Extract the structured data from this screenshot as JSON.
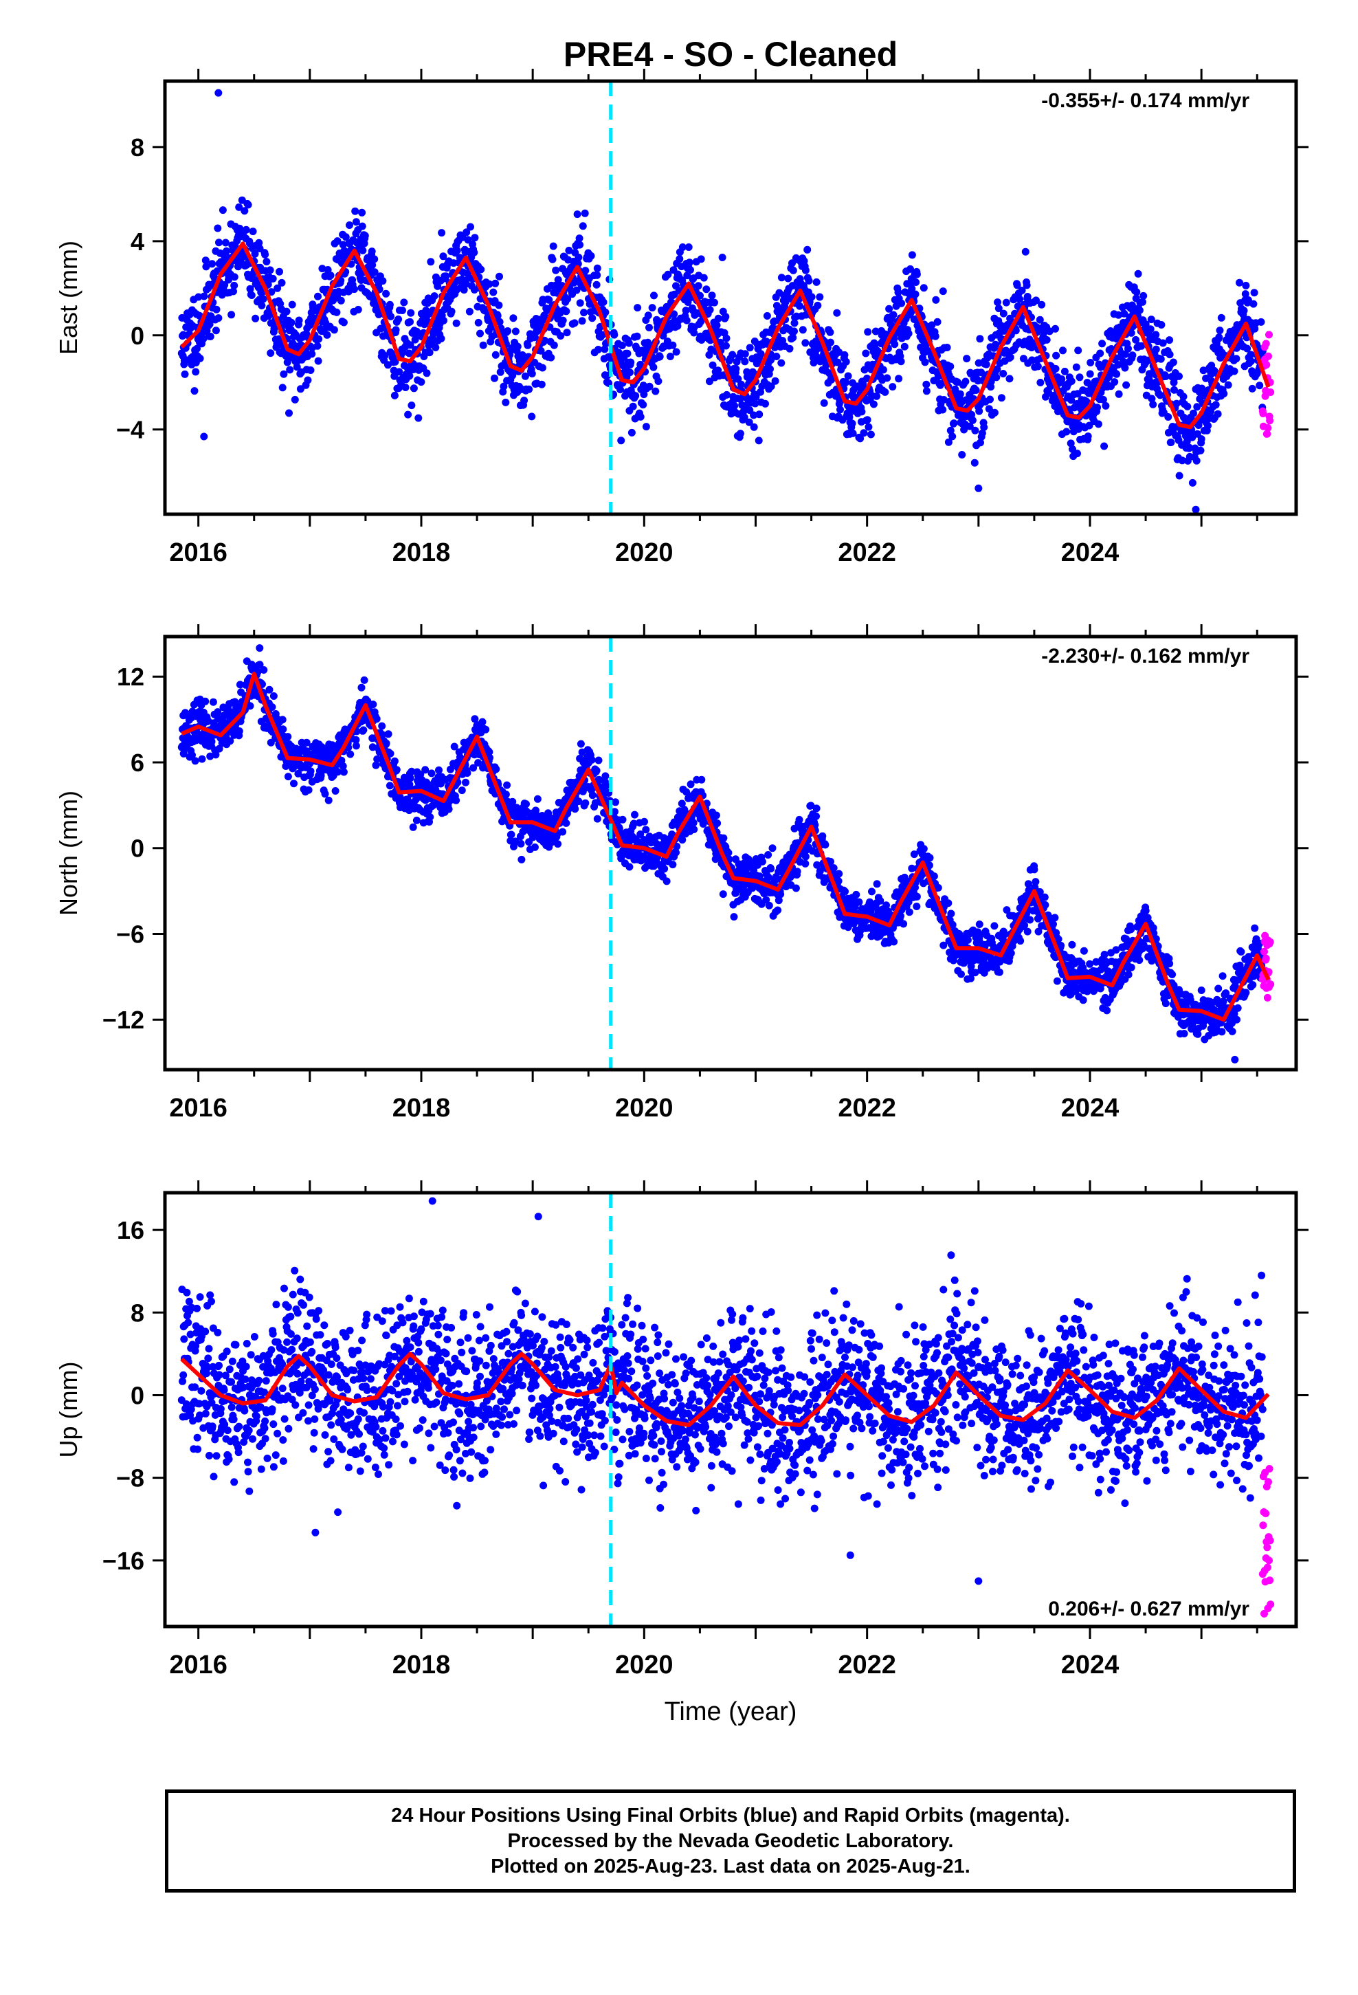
{
  "chart_data": {
    "title": "PRE4  - SO - Cleaned",
    "xlabel": "Time (year)",
    "xlim": [
      2015.7,
      2025.85
    ],
    "x_ticks": [
      2016,
      2018,
      2020,
      2022,
      2024
    ],
    "type": "scatter",
    "event_line_x": 2019.7,
    "colors": {
      "final": "#0000ff",
      "rapid": "#ff00ff",
      "model": "#ff0000",
      "event": "#00e5ff"
    },
    "panels": [
      {
        "id": "east",
        "ylabel": "East (mm)",
        "ylim": [
          -7.6,
          10.8
        ],
        "y_ticks": [
          -4,
          0,
          4,
          8
        ],
        "rate": "-0.355+/- 0.174 mm/yr",
        "rate_position": "top-right",
        "model": {
          "x": [
            2015.85,
            2016.0,
            2016.2,
            2016.4,
            2016.6,
            2016.8,
            2016.9,
            2017.0,
            2017.2,
            2017.4,
            2017.6,
            2017.8,
            2017.9,
            2018.0,
            2018.2,
            2018.4,
            2018.6,
            2018.8,
            2018.9,
            2019.0,
            2019.2,
            2019.4,
            2019.6,
            2019.8,
            2019.9,
            2020.0,
            2020.2,
            2020.4,
            2020.6,
            2020.8,
            2020.9,
            2021.0,
            2021.2,
            2021.4,
            2021.6,
            2021.8,
            2021.9,
            2022.0,
            2022.2,
            2022.4,
            2022.6,
            2022.8,
            2022.9,
            2023.0,
            2023.2,
            2023.4,
            2023.6,
            2023.8,
            2023.9,
            2024.0,
            2024.2,
            2024.4,
            2024.6,
            2024.8,
            2024.9,
            2025.0,
            2025.2,
            2025.4,
            2025.6
          ],
          "y": [
            -0.5,
            0.2,
            2.6,
            3.9,
            2.0,
            -0.6,
            -0.8,
            -0.2,
            2.1,
            3.6,
            1.8,
            -1.0,
            -1.1,
            -0.5,
            1.8,
            3.3,
            1.3,
            -1.3,
            -1.5,
            -0.9,
            1.3,
            2.9,
            1.0,
            -1.9,
            -2.0,
            -1.4,
            0.8,
            2.2,
            0.2,
            -2.3,
            -2.5,
            -1.9,
            0.3,
            1.9,
            -0.3,
            -2.8,
            -2.9,
            -2.3,
            -0.1,
            1.5,
            -0.7,
            -3.1,
            -3.2,
            -2.7,
            -0.5,
            1.2,
            -1.1,
            -3.4,
            -3.5,
            -3.0,
            -0.9,
            0.8,
            -1.5,
            -3.8,
            -3.9,
            -3.3,
            -1.2,
            0.5,
            -2.2
          ]
        },
        "final_points": {
          "seed": 11,
          "start": 2015.85,
          "end": 2025.55,
          "count": 2700,
          "noise_sd": 0.95,
          "outliers": [
            [
              2016.18,
              10.3
            ],
            [
              2016.05,
              -4.3
            ],
            [
              2024.95,
              -7.4
            ],
            [
              2023.0,
              -6.5
            ]
          ]
        },
        "rapid_points": {
          "start": 2025.55,
          "end": 2025.62,
          "count": 22,
          "y_range": [
            -4.5,
            0.1
          ]
        }
      },
      {
        "id": "north",
        "ylabel": "North (mm)",
        "ylim": [
          -15.5,
          14.8
        ],
        "y_ticks": [
          -12,
          -6,
          0,
          6,
          12
        ],
        "rate": "-2.230+/- 0.162 mm/yr",
        "rate_position": "top-right",
        "model": {
          "x": [
            2015.85,
            2016.0,
            2016.2,
            2016.4,
            2016.5,
            2016.6,
            2016.8,
            2017.0,
            2017.2,
            2017.3,
            2017.5,
            2017.7,
            2017.8,
            2018.0,
            2018.2,
            2018.3,
            2018.5,
            2018.7,
            2018.8,
            2019.0,
            2019.2,
            2019.3,
            2019.5,
            2019.7,
            2019.8,
            2020.0,
            2020.2,
            2020.3,
            2020.5,
            2020.7,
            2020.8,
            2021.0,
            2021.2,
            2021.3,
            2021.5,
            2021.7,
            2021.8,
            2022.0,
            2022.2,
            2022.3,
            2022.5,
            2022.7,
            2022.8,
            2023.0,
            2023.2,
            2023.3,
            2023.5,
            2023.7,
            2023.8,
            2024.0,
            2024.2,
            2024.3,
            2024.5,
            2024.7,
            2024.8,
            2025.0,
            2025.2,
            2025.3,
            2025.5,
            2025.6
          ],
          "y": [
            8.0,
            8.5,
            7.9,
            9.5,
            12.2,
            10.0,
            6.3,
            6.2,
            5.8,
            7.0,
            10.0,
            6.0,
            3.9,
            4.0,
            3.3,
            4.8,
            7.8,
            3.8,
            1.8,
            1.8,
            1.2,
            2.8,
            5.5,
            2.0,
            0.2,
            0.0,
            -0.6,
            1.0,
            3.6,
            -0.4,
            -2.1,
            -2.3,
            -2.9,
            -1.5,
            1.5,
            -2.5,
            -4.6,
            -4.8,
            -5.4,
            -3.8,
            -1.0,
            -5.0,
            -7.0,
            -7.0,
            -7.5,
            -6.0,
            -3.0,
            -7.0,
            -9.1,
            -9.0,
            -9.6,
            -8.0,
            -5.3,
            -9.5,
            -11.3,
            -11.4,
            -12.0,
            -10.5,
            -7.5,
            -9.2
          ]
        },
        "final_points": {
          "seed": 23,
          "start": 2015.85,
          "end": 2025.55,
          "count": 2700,
          "noise_sd": 0.85,
          "outliers": [
            [
              2016.55,
              14.0
            ],
            [
              2025.3,
              -14.8
            ],
            [
              2018.9,
              -0.8
            ],
            [
              2023.5,
              -1.5
            ]
          ]
        },
        "rapid_points": {
          "start": 2025.55,
          "end": 2025.62,
          "count": 22,
          "y_range": [
            -10.5,
            -5.8
          ]
        }
      },
      {
        "id": "up",
        "ylabel": "Up (mm)",
        "ylim": [
          -22.4,
          19.6
        ],
        "y_ticks": [
          -16,
          -8,
          0,
          8,
          16
        ],
        "rate": "0.206+/- 0.627 mm/yr",
        "rate_position": "bottom-right",
        "model": {
          "x": [
            2015.85,
            2016.0,
            2016.2,
            2016.4,
            2016.6,
            2016.8,
            2016.9,
            2017.0,
            2017.2,
            2017.4,
            2017.6,
            2017.8,
            2017.9,
            2018.0,
            2018.2,
            2018.4,
            2018.6,
            2018.8,
            2018.9,
            2019.0,
            2019.2,
            2019.4,
            2019.6,
            2019.7,
            2019.75,
            2019.8,
            2020.0,
            2020.2,
            2020.4,
            2020.6,
            2020.8,
            2021.0,
            2021.2,
            2021.4,
            2021.6,
            2021.8,
            2022.0,
            2022.2,
            2022.4,
            2022.6,
            2022.8,
            2023.0,
            2023.2,
            2023.4,
            2023.6,
            2023.8,
            2024.0,
            2024.2,
            2024.4,
            2024.6,
            2024.8,
            2025.0,
            2025.2,
            2025.4,
            2025.6
          ],
          "y": [
            3.5,
            2.0,
            0.0,
            -0.8,
            -0.5,
            2.8,
            3.8,
            2.8,
            0.0,
            -0.6,
            -0.2,
            2.9,
            4.0,
            3.0,
            0.2,
            -0.4,
            0.0,
            3.0,
            4.0,
            3.0,
            0.5,
            0.0,
            0.5,
            3.0,
            0.2,
            1.2,
            -1.0,
            -2.5,
            -2.9,
            -1.0,
            1.8,
            -1.0,
            -2.7,
            -2.9,
            -1.0,
            2.0,
            0.0,
            -2.0,
            -2.6,
            -1.0,
            2.2,
            0.0,
            -2.0,
            -2.4,
            -0.8,
            2.4,
            0.5,
            -1.6,
            -2.2,
            -0.5,
            2.6,
            0.5,
            -1.6,
            -2.2,
            0.1
          ]
        },
        "final_points": {
          "seed": 37,
          "start": 2015.85,
          "end": 2025.55,
          "count": 2700,
          "noise_sd": 3.6,
          "outliers": [
            [
              2018.1,
              18.8
            ],
            [
              2019.05,
              17.3
            ],
            [
              2023.0,
              -18.0
            ],
            [
              2017.05,
              -13.3
            ],
            [
              2021.85,
              -15.5
            ]
          ]
        },
        "rapid_points": {
          "start": 2025.55,
          "end": 2025.62,
          "count": 22,
          "y_range": [
            -21.5,
            -7.0
          ]
        }
      }
    ]
  },
  "footer": {
    "line1": "24 Hour Positions Using Final Orbits (blue) and Rapid Orbits (magenta).",
    "line2": "Processed by the Nevada Geodetic Laboratory.",
    "line3": "Plotted on 2025-Aug-23. Last data on 2025-Aug-21."
  }
}
